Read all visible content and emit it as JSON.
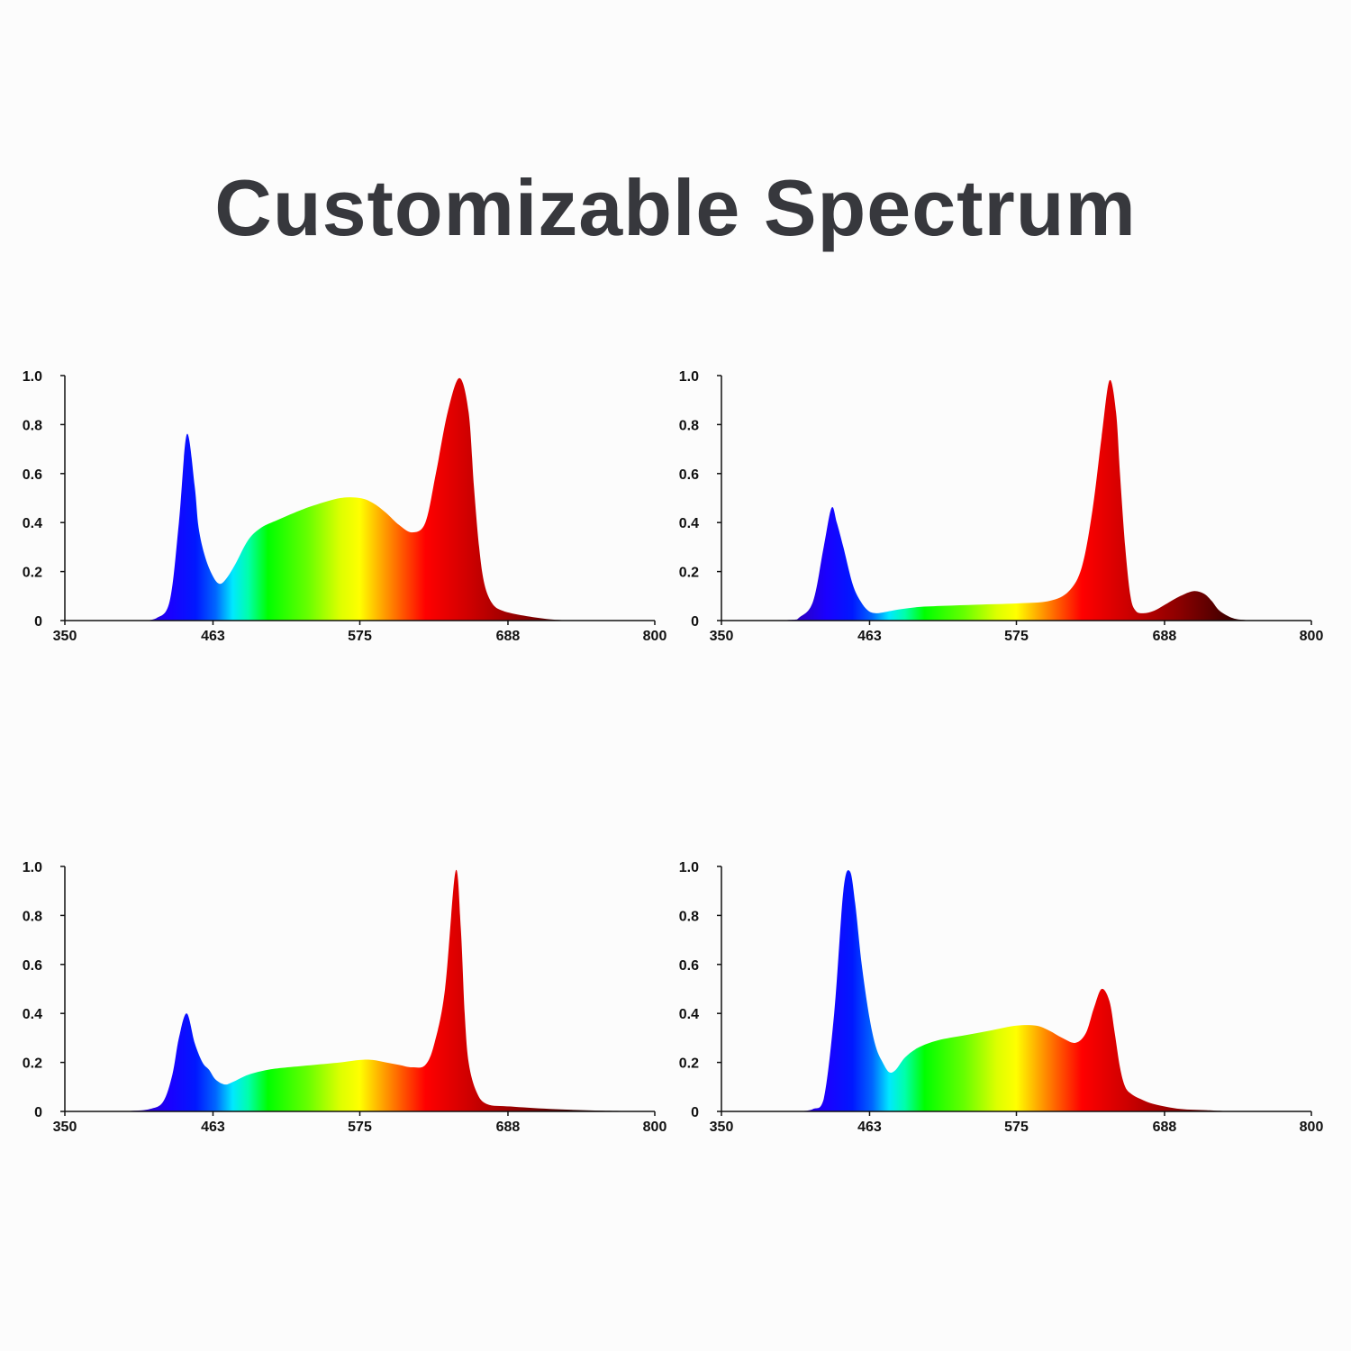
{
  "title": "Customizable Spectrum",
  "chart_data": [
    {
      "type": "area",
      "xlim": [
        350,
        800
      ],
      "ylim": [
        0,
        1.0
      ],
      "x_ticks": [
        "350",
        "463",
        "575",
        "688",
        "800"
      ],
      "y_ticks": [
        "0",
        "0.2",
        "0.4",
        "0.6",
        "0.8",
        "1.0"
      ],
      "grid": false,
      "fill": "wavelength-spectrum-gradient",
      "x": [
        410,
        420,
        430,
        437,
        443,
        449,
        452,
        457,
        463,
        468,
        473,
        480,
        490,
        500,
        512,
        525,
        540,
        560,
        575,
        585,
        595,
        605,
        615,
        625,
        633,
        642,
        651,
        658,
        662,
        666,
        670,
        676,
        684,
        700,
        720,
        740
      ],
      "y": [
        0,
        0.01,
        0.08,
        0.4,
        0.76,
        0.55,
        0.38,
        0.26,
        0.18,
        0.15,
        0.17,
        0.23,
        0.33,
        0.38,
        0.41,
        0.44,
        0.47,
        0.5,
        0.5,
        0.48,
        0.44,
        0.39,
        0.36,
        0.4,
        0.6,
        0.85,
        0.99,
        0.85,
        0.55,
        0.3,
        0.15,
        0.07,
        0.04,
        0.02,
        0.005,
        0
      ]
    },
    {
      "type": "area",
      "xlim": [
        350,
        800
      ],
      "ylim": [
        0,
        1.0
      ],
      "x_ticks": [
        "350",
        "463",
        "575",
        "688",
        "800"
      ],
      "y_ticks": [
        "0",
        "0.2",
        "0.4",
        "0.6",
        "0.8",
        "1.0"
      ],
      "grid": false,
      "fill": "wavelength-spectrum-gradient",
      "x": [
        350,
        400,
        410,
        420,
        428,
        434,
        438,
        443,
        450,
        456,
        462,
        468,
        475,
        485,
        500,
        520,
        545,
        575,
        600,
        615,
        625,
        633,
        640,
        646,
        651,
        654,
        658,
        662,
        666,
        672,
        680,
        690,
        700,
        710,
        718,
        724,
        730,
        740,
        750,
        760
      ],
      "y": [
        0,
        0.002,
        0.015,
        0.08,
        0.3,
        0.46,
        0.4,
        0.3,
        0.15,
        0.08,
        0.04,
        0.03,
        0.035,
        0.045,
        0.055,
        0.06,
        0.065,
        0.07,
        0.08,
        0.12,
        0.22,
        0.45,
        0.75,
        0.98,
        0.85,
        0.6,
        0.3,
        0.1,
        0.04,
        0.03,
        0.04,
        0.07,
        0.1,
        0.12,
        0.11,
        0.08,
        0.04,
        0.01,
        0.002,
        0
      ]
    },
    {
      "type": "area",
      "xlim": [
        350,
        800
      ],
      "ylim": [
        0,
        1.0
      ],
      "x_ticks": [
        "350",
        "463",
        "575",
        "688",
        "800"
      ],
      "y_ticks": [
        "0",
        "0.2",
        "0.4",
        "0.6",
        "0.8",
        "1.0"
      ],
      "grid": false,
      "fill": "wavelength-spectrum-gradient",
      "x": [
        382,
        400,
        415,
        425,
        432,
        437,
        443,
        449,
        455,
        460,
        465,
        472,
        478,
        490,
        505,
        520,
        540,
        560,
        575,
        585,
        595,
        605,
        615,
        625,
        632,
        640,
        648,
        652,
        655,
        658,
        664,
        672,
        690,
        720,
        760,
        800
      ],
      "y": [
        0,
        0.002,
        0.01,
        0.04,
        0.15,
        0.3,
        0.4,
        0.28,
        0.2,
        0.17,
        0.13,
        0.11,
        0.12,
        0.15,
        0.17,
        0.18,
        0.19,
        0.2,
        0.21,
        0.21,
        0.2,
        0.19,
        0.18,
        0.19,
        0.28,
        0.5,
        0.98,
        0.75,
        0.4,
        0.2,
        0.08,
        0.03,
        0.02,
        0.01,
        0.003,
        0
      ]
    },
    {
      "type": "area",
      "xlim": [
        350,
        800
      ],
      "ylim": [
        0,
        1.0
      ],
      "x_ticks": [
        "350",
        "463",
        "575",
        "688",
        "800"
      ],
      "y_ticks": [
        "0",
        "0.2",
        "0.4",
        "0.6",
        "0.8",
        "1.0"
      ],
      "grid": false,
      "fill": "wavelength-spectrum-gradient",
      "x": [
        410,
        420,
        428,
        436,
        443,
        448,
        452,
        457,
        463,
        468,
        473,
        478,
        483,
        490,
        500,
        515,
        535,
        555,
        575,
        590,
        600,
        610,
        620,
        628,
        634,
        640,
        646,
        650,
        654,
        658,
        663,
        670,
        680,
        700,
        720,
        740
      ],
      "y": [
        0,
        0.01,
        0.05,
        0.4,
        0.9,
        0.98,
        0.85,
        0.6,
        0.38,
        0.26,
        0.2,
        0.16,
        0.17,
        0.22,
        0.26,
        0.29,
        0.31,
        0.33,
        0.35,
        0.35,
        0.33,
        0.3,
        0.28,
        0.32,
        0.42,
        0.5,
        0.45,
        0.32,
        0.18,
        0.1,
        0.07,
        0.05,
        0.03,
        0.01,
        0.005,
        0
      ]
    }
  ]
}
